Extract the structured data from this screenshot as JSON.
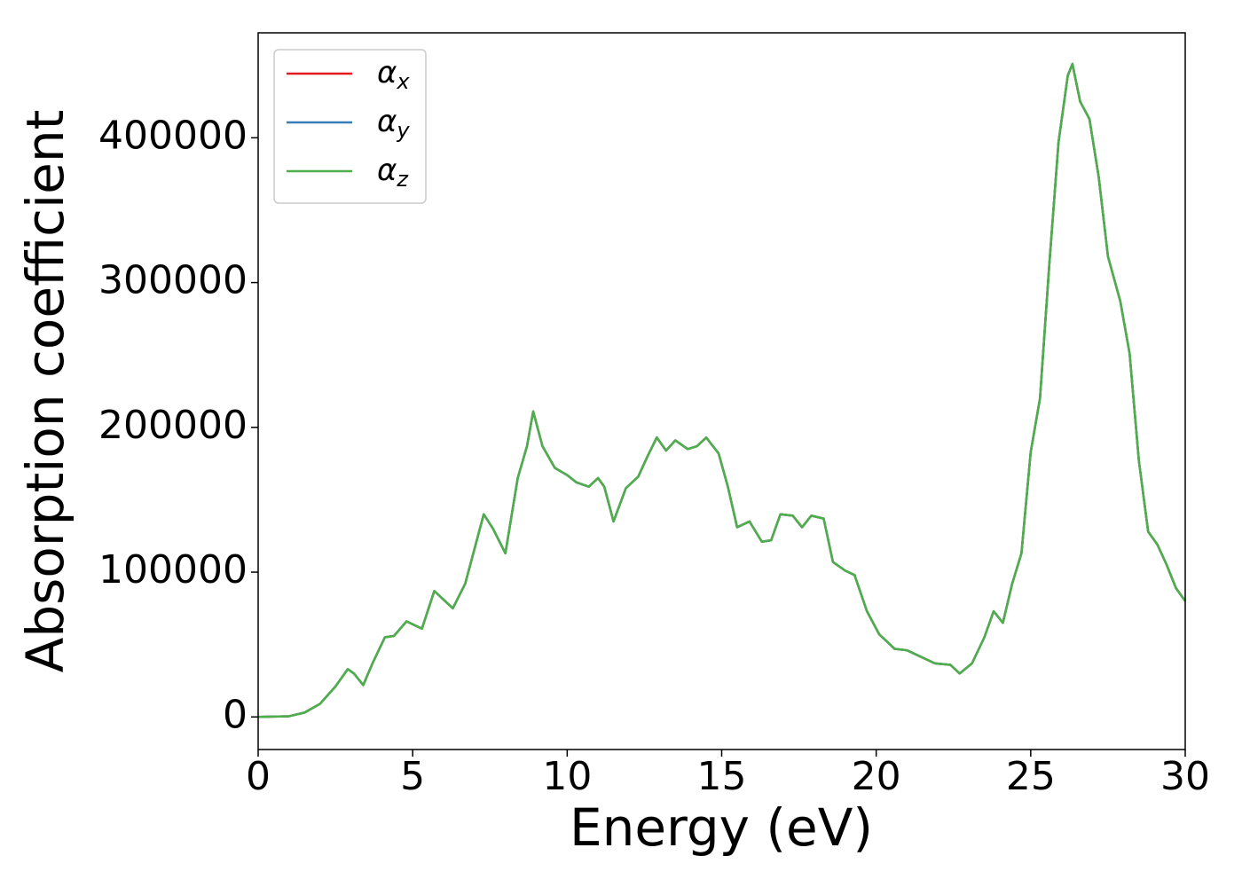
{
  "chart_data": {
    "type": "line",
    "xlabel": "Energy (eV)",
    "ylabel": "Absorption coefficient",
    "x": [
      0,
      1,
      1.5,
      2,
      2.5,
      2.9,
      3.1,
      3.4,
      3.7,
      4.1,
      4.4,
      4.8,
      5.3,
      5.7,
      6.0,
      6.3,
      6.7,
      7.0,
      7.3,
      7.6,
      8.0,
      8.4,
      8.7,
      8.9,
      9.2,
      9.6,
      10.0,
      10.3,
      10.7,
      11.0,
      11.2,
      11.5,
      11.9,
      12.3,
      12.6,
      12.9,
      13.2,
      13.5,
      13.9,
      14.2,
      14.5,
      14.9,
      15.2,
      15.5,
      15.9,
      16.3,
      16.6,
      16.9,
      17.3,
      17.6,
      17.9,
      18.3,
      18.6,
      19.0,
      19.3,
      19.7,
      20.1,
      20.6,
      21.0,
      21.5,
      21.9,
      22.4,
      22.7,
      23.1,
      23.5,
      23.8,
      24.1,
      24.4,
      24.7,
      25.0,
      25.3,
      25.6,
      25.9,
      26.2,
      26.35,
      26.6,
      26.9,
      27.2,
      27.5,
      27.9,
      28.2,
      28.5,
      28.8,
      29.1,
      29.4,
      29.7,
      30
    ],
    "series": [
      {
        "name": "αx",
        "color": "#e41a1c",
        "values": [
          0,
          500,
          3000,
          9000,
          21000,
          33000,
          30000,
          22000,
          37000,
          55000,
          56000,
          66000,
          61000,
          87000,
          81000,
          75000,
          92000,
          116000,
          140000,
          130000,
          113000,
          165000,
          187000,
          211000,
          187000,
          172000,
          167000,
          162000,
          159000,
          165000,
          159000,
          135000,
          158000,
          166000,
          180000,
          193000,
          184000,
          191000,
          185000,
          187000,
          193000,
          182000,
          159000,
          131000,
          135000,
          121000,
          122000,
          140000,
          139000,
          131000,
          139000,
          137000,
          107000,
          101000,
          98000,
          73000,
          57000,
          47000,
          46000,
          41000,
          37000,
          36000,
          30000,
          37000,
          55000,
          73000,
          65000,
          92000,
          113000,
          183000,
          220000,
          312000,
          397000,
          443000,
          451000,
          425000,
          413000,
          373000,
          318000,
          287000,
          251000,
          177000,
          128000,
          119000,
          105000,
          89000,
          80000
        ]
      },
      {
        "name": "αy",
        "color": "#377eb8",
        "values": [
          0,
          500,
          3000,
          9000,
          21000,
          33000,
          30000,
          22000,
          37000,
          55000,
          56000,
          66000,
          61000,
          87000,
          81000,
          75000,
          92000,
          116000,
          140000,
          130000,
          113000,
          165000,
          187000,
          211000,
          187000,
          172000,
          167000,
          162000,
          159000,
          165000,
          159000,
          135000,
          158000,
          166000,
          180000,
          193000,
          184000,
          191000,
          185000,
          187000,
          193000,
          182000,
          159000,
          131000,
          135000,
          121000,
          122000,
          140000,
          139000,
          131000,
          139000,
          137000,
          107000,
          101000,
          98000,
          73000,
          57000,
          47000,
          46000,
          41000,
          37000,
          36000,
          30000,
          37000,
          55000,
          73000,
          65000,
          92000,
          113000,
          183000,
          220000,
          312000,
          397000,
          443000,
          451000,
          425000,
          413000,
          373000,
          318000,
          287000,
          251000,
          177000,
          128000,
          119000,
          105000,
          89000,
          80000
        ]
      },
      {
        "name": "αz",
        "color": "#4daf4a",
        "values": [
          0,
          500,
          3000,
          9000,
          21000,
          33000,
          30000,
          22000,
          37000,
          55000,
          56000,
          66000,
          61000,
          87000,
          81000,
          75000,
          92000,
          116000,
          140000,
          130000,
          113000,
          165000,
          187000,
          211000,
          187000,
          172000,
          167000,
          162000,
          159000,
          165000,
          159000,
          135000,
          158000,
          166000,
          180000,
          193000,
          184000,
          191000,
          185000,
          187000,
          193000,
          182000,
          159000,
          131000,
          135000,
          121000,
          122000,
          140000,
          139000,
          131000,
          139000,
          137000,
          107000,
          101000,
          98000,
          73000,
          57000,
          47000,
          46000,
          41000,
          37000,
          36000,
          30000,
          37000,
          55000,
          73000,
          65000,
          92000,
          113000,
          183000,
          220000,
          312000,
          397000,
          443000,
          451000,
          425000,
          413000,
          373000,
          318000,
          287000,
          251000,
          177000,
          128000,
          119000,
          105000,
          89000,
          80000
        ]
      }
    ],
    "xlim": [
      0,
      30
    ],
    "xticks": [
      0,
      5,
      10,
      15,
      20,
      25,
      30
    ],
    "ylim": [
      -22500,
      472500
    ],
    "yticks": [
      0,
      100000,
      200000,
      300000,
      400000
    ],
    "grid": false,
    "legend": "upper left"
  }
}
